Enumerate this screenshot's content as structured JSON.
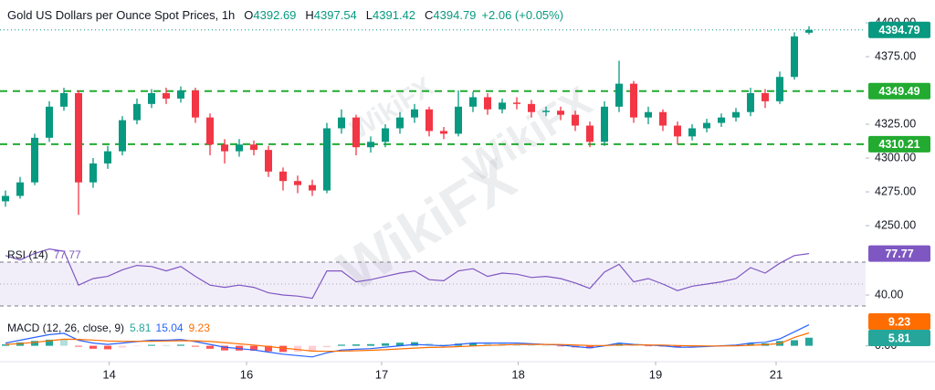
{
  "chart_data": [
    {
      "type": "candlestick",
      "title": "Gold US Dollars per Ounce Spot Prices, 1h",
      "ohlc_labels": [
        "O",
        "H",
        "L",
        "C"
      ],
      "change": {
        "value": 2.06,
        "label": "+2.06 (+0.05%)"
      },
      "open": [
        4268,
        4272,
        4282,
        4315,
        4338,
        4348,
        4282,
        4296,
        4305,
        4328,
        4340,
        4348,
        4344,
        4350,
        4330,
        4310,
        4305,
        4310,
        4306,
        4290,
        4283,
        4280,
        4276,
        4322,
        4330,
        4308,
        4312,
        4322,
        4330,
        4336,
        4320,
        4318,
        4338,
        4345,
        4336,
        4341,
        4340,
        4334,
        4335,
        4332,
        4324,
        4312,
        4338,
        4355,
        4330,
        4334,
        4324,
        4316,
        4322,
        4326,
        4330,
        4334,
        4348,
        4342,
        4360,
        4392.69
      ],
      "high": [
        4276,
        4286,
        4318,
        4342,
        4352,
        4350,
        4300,
        4309,
        4331,
        4344,
        4351,
        4352,
        4353,
        4352,
        4333,
        4314,
        4314,
        4313,
        4309,
        4293,
        4287,
        4284,
        4326,
        4336,
        4332,
        4316,
        4325,
        4334,
        4340,
        4338,
        4323,
        4350,
        4349,
        4348,
        4344,
        4345,
        4343,
        4338,
        4338,
        4335,
        4327,
        4342,
        4372,
        4357,
        4338,
        4336,
        4327,
        4325,
        4329,
        4333,
        4337,
        4352,
        4351,
        4364,
        4393,
        4397.54
      ],
      "low": [
        4264,
        4270,
        4280,
        4312,
        4335,
        4258,
        4278,
        4292,
        4302,
        4325,
        4337,
        4340,
        4341,
        4326,
        4302,
        4296,
        4301,
        4302,
        4286,
        4276,
        4274,
        4272,
        4274,
        4318,
        4302,
        4304,
        4308,
        4318,
        4326,
        4316,
        4314,
        4316,
        4334,
        4332,
        4333,
        4336,
        4330,
        4331,
        4328,
        4320,
        4308,
        4309,
        4334,
        4326,
        4325,
        4320,
        4310,
        4313,
        4319,
        4323,
        4327,
        4331,
        4337,
        4340,
        4358,
        4391.42
      ],
      "close": [
        4272,
        4282,
        4315,
        4338,
        4348,
        4282,
        4296,
        4305,
        4328,
        4340,
        4348,
        4344,
        4350,
        4330,
        4310,
        4305,
        4310,
        4306,
        4290,
        4283,
        4280,
        4276,
        4322,
        4330,
        4308,
        4312,
        4322,
        4330,
        4336,
        4320,
        4318,
        4338,
        4345,
        4336,
        4341,
        4340,
        4334,
        4335,
        4332,
        4324,
        4312,
        4338,
        4355,
        4330,
        4334,
        4324,
        4316,
        4322,
        4326,
        4330,
        4334,
        4348,
        4342,
        4360,
        4390,
        4394.79
      ],
      "up_color": "#089981",
      "down_color": "#f23645",
      "ylim": [
        4242.6,
        4411.5
      ],
      "yticks": [
        {
          "value": 4400,
          "label": "4400.00"
        },
        {
          "value": 4375,
          "label": "4375.00"
        },
        {
          "value": 4325,
          "label": "4325.00"
        },
        {
          "value": 4300,
          "label": "4300.00"
        },
        {
          "value": 4275,
          "label": "4275.00"
        },
        {
          "value": 4250,
          "label": "4250.00"
        }
      ],
      "levels": [
        4349.49,
        4310.21
      ],
      "level_color": "#22ab30",
      "xlim": [
        -0.375,
        58.875
      ],
      "xticks": [
        {
          "value": 7.1,
          "label": "14"
        },
        {
          "value": 16.5,
          "label": "16"
        },
        {
          "value": 25.75,
          "label": "17"
        },
        {
          "value": 35.1,
          "label": "18"
        },
        {
          "value": 44.5,
          "label": "19"
        },
        {
          "value": 52.75,
          "label": "21"
        }
      ],
      "watermark": "WikiFX"
    },
    {
      "type": "line",
      "title": "RSI (14)",
      "values": [
        76,
        72,
        78,
        82,
        80,
        49,
        55,
        57,
        63,
        67,
        66,
        62,
        66,
        57,
        49,
        47,
        49,
        47,
        42,
        40,
        39,
        37,
        62,
        62,
        52,
        54,
        57,
        60,
        62,
        54,
        53,
        62,
        64,
        57,
        60,
        59,
        56,
        57,
        55,
        51,
        46,
        61,
        68,
        52,
        55,
        50,
        44,
        48,
        50,
        52,
        55,
        65,
        60,
        69,
        76,
        77.77
      ],
      "color": "#7e57c2",
      "ylim": [
        21.7,
        88.3
      ],
      "yticks": [
        {
          "value": 40,
          "label": "40.00"
        }
      ],
      "bands": [
        30,
        70
      ],
      "midline": 50
    },
    {
      "type": "macd",
      "title": "MACD (12, 26, close, 9)",
      "series": [
        {
          "color": "#26a69a",
          "values": [
            1,
            2.4,
            3.5,
            4.4,
            4.3,
            -0.6,
            -2.1,
            -2.5,
            -1.2,
            -0.2,
            0.7,
            0.5,
            0.8,
            -0.6,
            -2.1,
            -3.3,
            -3.4,
            -3.5,
            -4,
            -4.4,
            -4.3,
            -4.2,
            -1,
            0.8,
            1,
            1.2,
            1.8,
            2.2,
            2.6,
            1.7,
            1,
            1.6,
            2.1,
            1.7,
            1.4,
            1.1,
            0.5,
            0,
            -0.4,
            -1.1,
            -1.7,
            -0.2,
            1.5,
            0.4,
            -0.1,
            -0.5,
            -1.2,
            -1,
            -0.4,
            0.1,
            0.5,
            1.6,
            1.7,
            3.4,
            4,
            5.81
          ]
        },
        {
          "color": "#2962ff",
          "values": [
            2,
            4,
            6,
            8,
            9,
            4,
            2,
            1,
            2,
            3,
            4,
            4,
            4.5,
            3,
            1,
            -1,
            -2,
            -3,
            -4.5,
            -6,
            -7,
            -8,
            -5,
            -3,
            -2.5,
            -2,
            -1,
            0,
            1,
            0.5,
            0,
            1,
            2,
            2,
            2,
            2,
            1.5,
            1,
            0.5,
            -0.5,
            -1.5,
            0,
            2,
            1,
            0.5,
            0,
            -1,
            -1,
            -0.5,
            0,
            0.5,
            2,
            2.5,
            5,
            10,
            15.04
          ]
        },
        {
          "color": "#ff6d00",
          "values": [
            1,
            1.6,
            2.5,
            3.6,
            4.7,
            4.6,
            4.1,
            3.5,
            3.2,
            3.2,
            3.3,
            3.5,
            3.7,
            3.6,
            3.1,
            2.3,
            1.4,
            0.5,
            -0.5,
            -1.6,
            -2.7,
            -3.8,
            -4,
            -3.8,
            -3.5,
            -3.2,
            -2.8,
            -2.2,
            -1.6,
            -1.2,
            -1,
            -0.6,
            -0.1,
            0.3,
            0.6,
            0.9,
            1,
            1,
            0.9,
            0.6,
            0.2,
            0.2,
            0.5,
            0.6,
            0.6,
            0.5,
            0.2,
            0,
            -0.1,
            -0.1,
            0,
            0.4,
            0.8,
            1.6,
            6,
            9.23
          ]
        }
      ],
      "histogram_colors": [
        "#26a69a",
        "#b2dfdb",
        "#ffcdd2",
        "#ff5252"
      ],
      "ylim": [
        -14,
        22
      ],
      "yticks": [
        {
          "value": 0,
          "label": "0.00"
        }
      ]
    }
  ]
}
